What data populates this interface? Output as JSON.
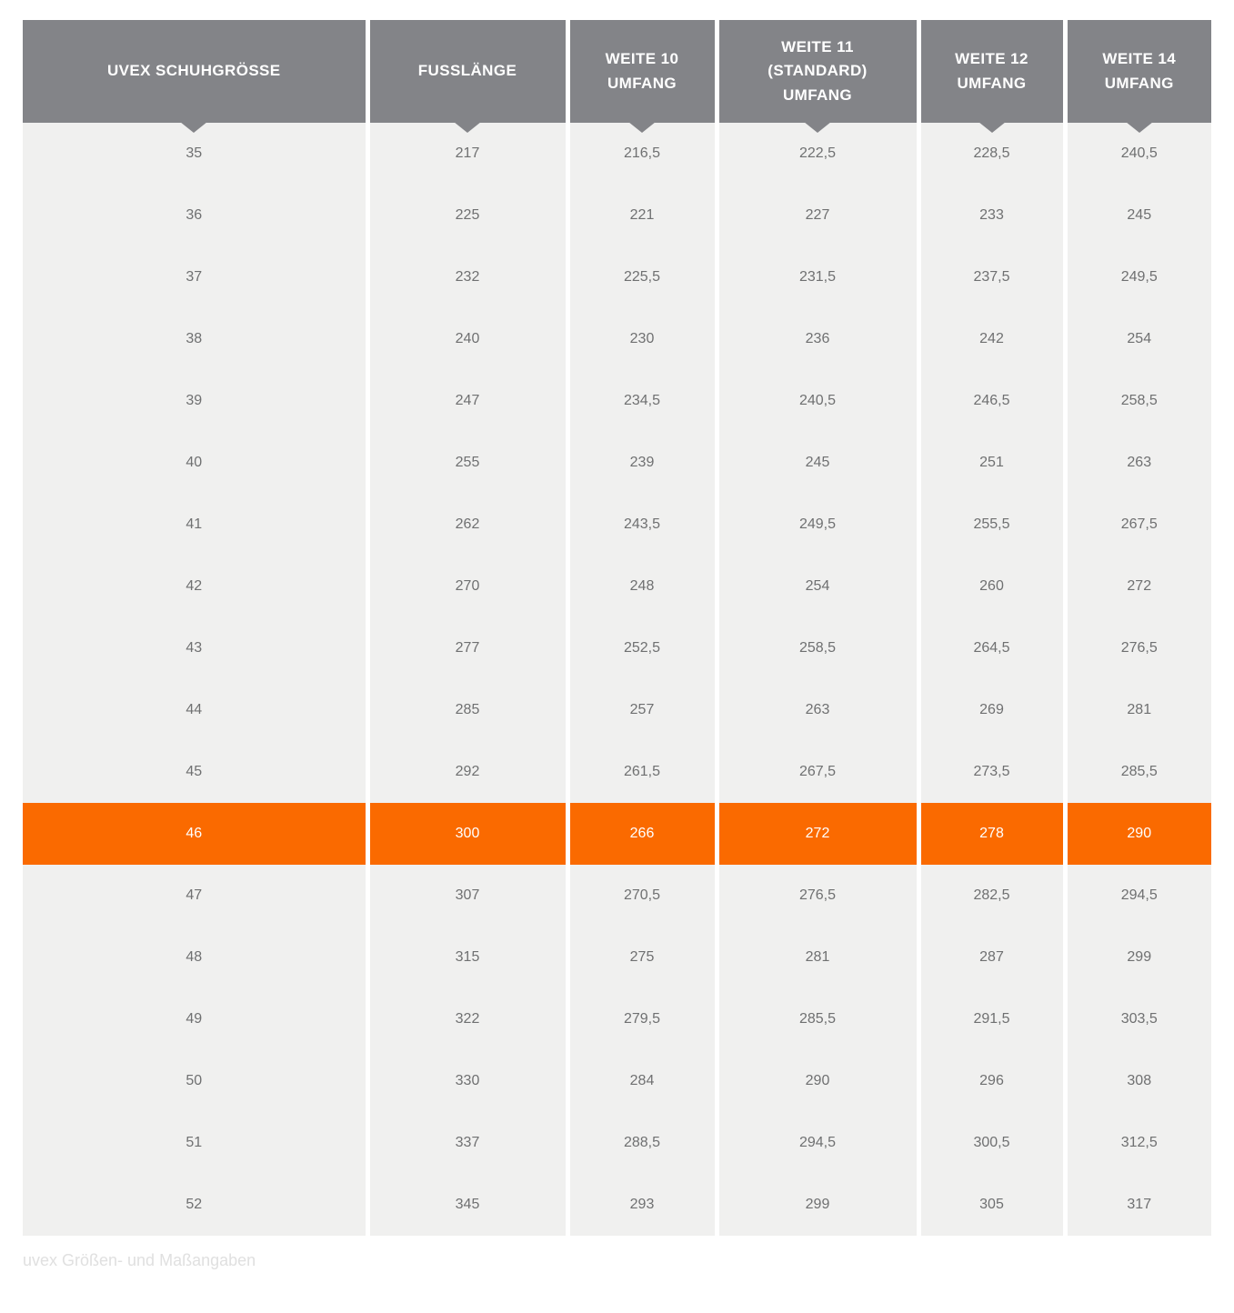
{
  "chart_data": {
    "type": "table",
    "columns": [
      "UVEX SCHUHGRÖSSE",
      "FUSSLÄNGE",
      "WEITE 10 UMFANG",
      "WEITE 11 (STANDARD) UMFANG",
      "WEITE 12 UMFANG",
      "WEITE 14 UMFANG"
    ],
    "rows": [
      [
        "35",
        "217",
        "216,5",
        "222,5",
        "228,5",
        "240,5"
      ],
      [
        "36",
        "225",
        "221",
        "227",
        "233",
        "245"
      ],
      [
        "37",
        "232",
        "225,5",
        "231,5",
        "237,5",
        "249,5"
      ],
      [
        "38",
        "240",
        "230",
        "236",
        "242",
        "254"
      ],
      [
        "39",
        "247",
        "234,5",
        "240,5",
        "246,5",
        "258,5"
      ],
      [
        "40",
        "255",
        "239",
        "245",
        "251",
        "263"
      ],
      [
        "41",
        "262",
        "243,5",
        "249,5",
        "255,5",
        "267,5"
      ],
      [
        "42",
        "270",
        "248",
        "254",
        "260",
        "272"
      ],
      [
        "43",
        "277",
        "252,5",
        "258,5",
        "264,5",
        "276,5"
      ],
      [
        "44",
        "285",
        "257",
        "263",
        "269",
        "281"
      ],
      [
        "45",
        "292",
        "261,5",
        "267,5",
        "273,5",
        "285,5"
      ],
      [
        "46",
        "300",
        "266",
        "272",
        "278",
        "290"
      ],
      [
        "47",
        "307",
        "270,5",
        "276,5",
        "282,5",
        "294,5"
      ],
      [
        "48",
        "315",
        "275",
        "281",
        "287",
        "299"
      ],
      [
        "49",
        "322",
        "279,5",
        "285,5",
        "291,5",
        "303,5"
      ],
      [
        "50",
        "330",
        "284",
        "290",
        "296",
        "308"
      ],
      [
        "51",
        "337",
        "288,5",
        "294,5",
        "300,5",
        "312,5"
      ],
      [
        "52",
        "345",
        "293",
        "299",
        "305",
        "317"
      ]
    ],
    "highlighted_row_index": 11,
    "highlighted_row_label": "46",
    "caption": "uvex Größen- und Maßangaben"
  },
  "header_display": [
    "UVEX SCHUHGRÖSSE",
    "FUSSLÄNGE",
    "WEITE 10\nUMFANG",
    "WEITE 11\n(STANDARD)\nUMFANG",
    "WEITE 12\nUMFANG",
    "WEITE 14\nUMFANG"
  ],
  "caption": "uvex Größen- und Maßangaben",
  "colors": {
    "header_bg": "#838488",
    "header_text": "#ffffff",
    "row_bg": "#f0f0ef",
    "cell_text": "#6f7071",
    "highlight_bg": "#fa6a00",
    "highlight_text": "#ffffff",
    "caption_text": "#e0e0e0",
    "separator": "#ffffff"
  }
}
